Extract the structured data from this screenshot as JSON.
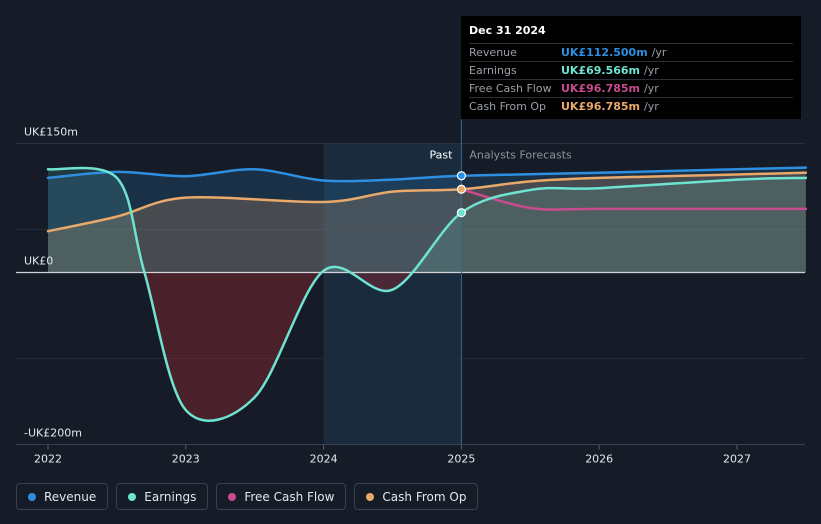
{
  "chart_data": {
    "type": "area",
    "x_ticks": [
      "2022",
      "2023",
      "2024",
      "2025",
      "2026",
      "2027"
    ],
    "y_labels": {
      "top": "UK£150m",
      "zero": "UK£0",
      "bottom": "-UK£200m"
    },
    "ylim": [
      -200,
      150
    ],
    "divider": {
      "past_label": "Past",
      "forecast_label": "Analysts Forecasts"
    },
    "series": [
      {
        "name": "Revenue",
        "color": "#2e8fe0",
        "points": [
          [
            2022,
            110
          ],
          [
            2022.5,
            117
          ],
          [
            2023,
            112
          ],
          [
            2023.5,
            120
          ],
          [
            2024,
            107
          ],
          [
            2024.5,
            108
          ],
          [
            2025,
            112.5
          ],
          [
            2026,
            116
          ],
          [
            2027,
            120
          ],
          [
            2027.5,
            122
          ]
        ]
      },
      {
        "name": "Earnings",
        "color": "#6fe3d1",
        "points": [
          [
            2022,
            120
          ],
          [
            2022.5,
            110
          ],
          [
            2022.7,
            0
          ],
          [
            2023,
            -160
          ],
          [
            2023.5,
            -145
          ],
          [
            2024,
            2
          ],
          [
            2024.5,
            -20
          ],
          [
            2025,
            69.566
          ],
          [
            2025.5,
            96
          ],
          [
            2026,
            98
          ],
          [
            2027,
            108
          ],
          [
            2027.5,
            110
          ]
        ]
      },
      {
        "name": "Free Cash Flow",
        "color": "#c84b8f",
        "points": [
          [
            2025,
            96.785
          ],
          [
            2025.5,
            75
          ],
          [
            2026,
            74
          ],
          [
            2027,
            74
          ],
          [
            2027.5,
            74
          ]
        ]
      },
      {
        "name": "Cash From Op",
        "color": "#e9a96a",
        "points": [
          [
            2022,
            48
          ],
          [
            2022.5,
            65
          ],
          [
            2023,
            87
          ],
          [
            2024,
            82
          ],
          [
            2024.5,
            94
          ],
          [
            2025,
            96.785
          ],
          [
            2025.5,
            106
          ],
          [
            2026,
            110
          ],
          [
            2027,
            114
          ],
          [
            2027.5,
            116
          ]
        ]
      }
    ]
  },
  "tooltip": {
    "date": "Dec 31 2024",
    "unit": "/yr",
    "rows": [
      {
        "label": "Revenue",
        "value": "UK£112.500m",
        "color": "#2e8fe0"
      },
      {
        "label": "Earnings",
        "value": "UK£69.566m",
        "color": "#6fe3d1"
      },
      {
        "label": "Free Cash Flow",
        "value": "UK£96.785m",
        "color": "#c84b8f"
      },
      {
        "label": "Cash From Op",
        "value": "UK£96.785m",
        "color": "#e9a96a"
      }
    ]
  },
  "legend": [
    {
      "label": "Revenue",
      "color": "#2e8fe0"
    },
    {
      "label": "Earnings",
      "color": "#6fe3d1"
    },
    {
      "label": "Free Cash Flow",
      "color": "#c84b8f"
    },
    {
      "label": "Cash From Op",
      "color": "#e9a96a"
    }
  ]
}
